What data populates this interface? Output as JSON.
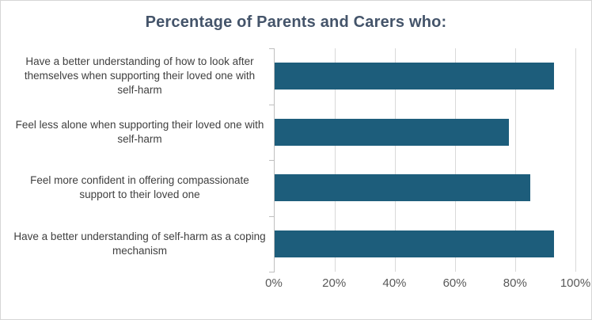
{
  "title": "Percentage of Parents and Carers who:",
  "chart_data": {
    "type": "bar",
    "orientation": "horizontal",
    "title": "Percentage of Parents and Carers who:",
    "categories": [
      "Have a better understanding of how to look after themselves when supporting their loved one with self-harm",
      "Feel less alone when supporting their loved one with self-harm",
      "Feel more confident in offering compassionate support to their loved one",
      "Have a better understanding of self-harm as a coping mechanism"
    ],
    "values": [
      93,
      78,
      85,
      93
    ],
    "xlabel": "",
    "ylabel": "",
    "xlim": [
      0,
      100
    ],
    "xticks": [
      "0%",
      "20%",
      "40%",
      "60%",
      "80%",
      "100%"
    ],
    "xtick_values": [
      0,
      20,
      40,
      60,
      80,
      100
    ],
    "grid": true,
    "legend": false,
    "bar_color": "#1d5d7b",
    "gridline_color": "#d9d9d9",
    "axis_line_color": "#bfbfbf",
    "title_color": "#44546a",
    "label_color": "#404040",
    "tick_label_color": "#595959"
  }
}
